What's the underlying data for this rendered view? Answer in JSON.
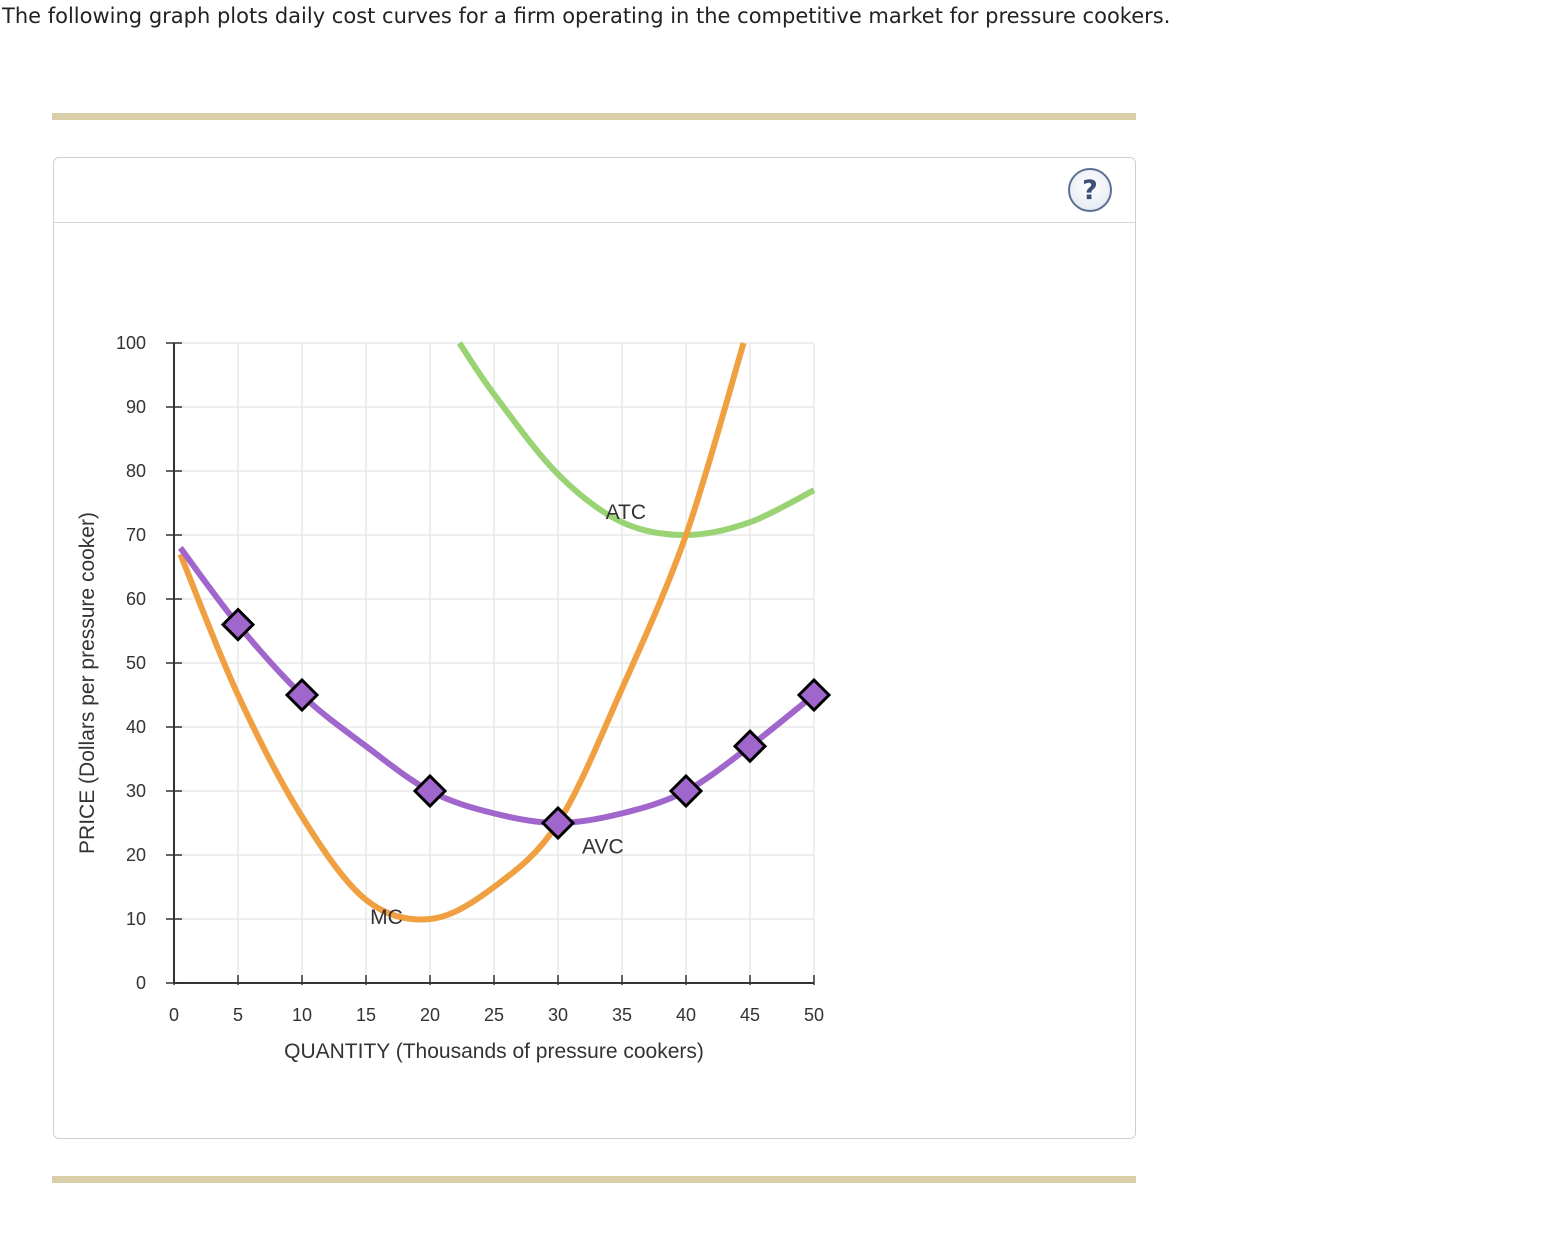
{
  "intro_text": "The following graph plots daily cost curves for a firm operating in the competitive market for pressure cookers.",
  "help_label": "?",
  "colors": {
    "mc": "#f0a040",
    "atc": "#99d373",
    "avc": "#a066cc",
    "grid": "#e8e8e8",
    "axis": "#333333",
    "rule": "#d8cfa8"
  },
  "chart_data": {
    "type": "line",
    "xlabel": "QUANTITY (Thousands of pressure cookers)",
    "ylabel": "PRICE (Dollars per pressure cooker)",
    "xlim": [
      0,
      50
    ],
    "ylim": [
      0,
      100
    ],
    "x_ticks": [
      0,
      5,
      10,
      15,
      20,
      25,
      30,
      35,
      40,
      45,
      50
    ],
    "y_ticks": [
      0,
      10,
      20,
      30,
      40,
      50,
      60,
      70,
      80,
      90,
      100
    ],
    "grid": true,
    "series": [
      {
        "name": "MC",
        "color": "#f0a040",
        "x": [
          0.5,
          5,
          10,
          15,
          20,
          25,
          30,
          35,
          40,
          44.5
        ],
        "y": [
          67,
          45,
          26,
          13,
          10,
          15,
          25,
          46,
          70,
          100
        ]
      },
      {
        "name": "ATC",
        "color": "#99d373",
        "x": [
          22.3,
          25,
          30,
          35,
          40,
          45,
          50
        ],
        "y": [
          100,
          92,
          79.5,
          72,
          70,
          72,
          77
        ]
      },
      {
        "name": "AVC",
        "color": "#a066cc",
        "x": [
          0.5,
          5,
          10,
          15,
          20,
          25,
          30,
          35,
          40,
          45,
          50
        ],
        "y": [
          68,
          56,
          45,
          37,
          30,
          26.5,
          25,
          26.5,
          30,
          37,
          45
        ],
        "markers": {
          "x": [
            5,
            10,
            20,
            30,
            40,
            45,
            50
          ],
          "y": [
            56,
            45,
            30,
            25,
            30,
            37,
            45
          ]
        }
      }
    ]
  }
}
